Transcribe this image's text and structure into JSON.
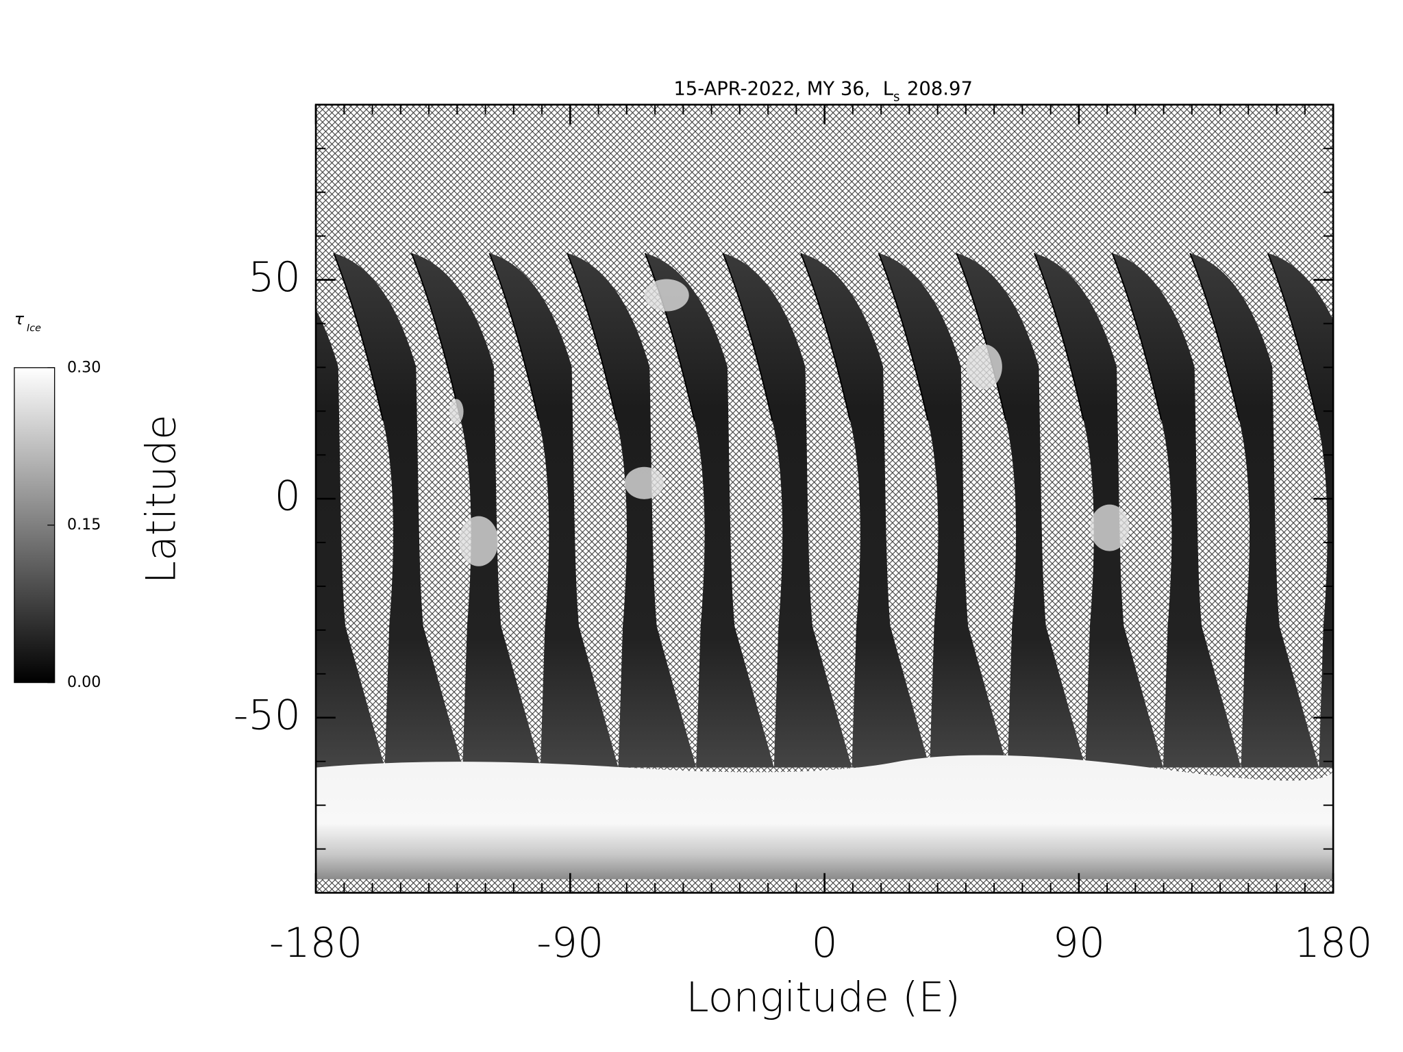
{
  "chart_data": {
    "type": "map",
    "title": {
      "text": "15-APR-2022, MY 36,",
      "symbol": "L",
      "subscript": "s",
      "value": 208.97
    },
    "x_label": "Longitude (E)",
    "y_label": "Latitude",
    "xlim": [
      -180,
      180
    ],
    "xticks": [
      -180,
      -90,
      0,
      90,
      180
    ],
    "ylim": [
      -90,
      90
    ],
    "yticks": [
      -50,
      0,
      50
    ],
    "colorbar": {
      "label": "τ",
      "label_subscript": "Ice",
      "lim": [
        0,
        0.3
      ],
      "ticks": [
        {
          "value": 0,
          "label": "0.00"
        },
        {
          "value": 0.15,
          "label": "0.15"
        },
        {
          "value": 0.3,
          "label": "0.30"
        }
      ]
    }
  }
}
